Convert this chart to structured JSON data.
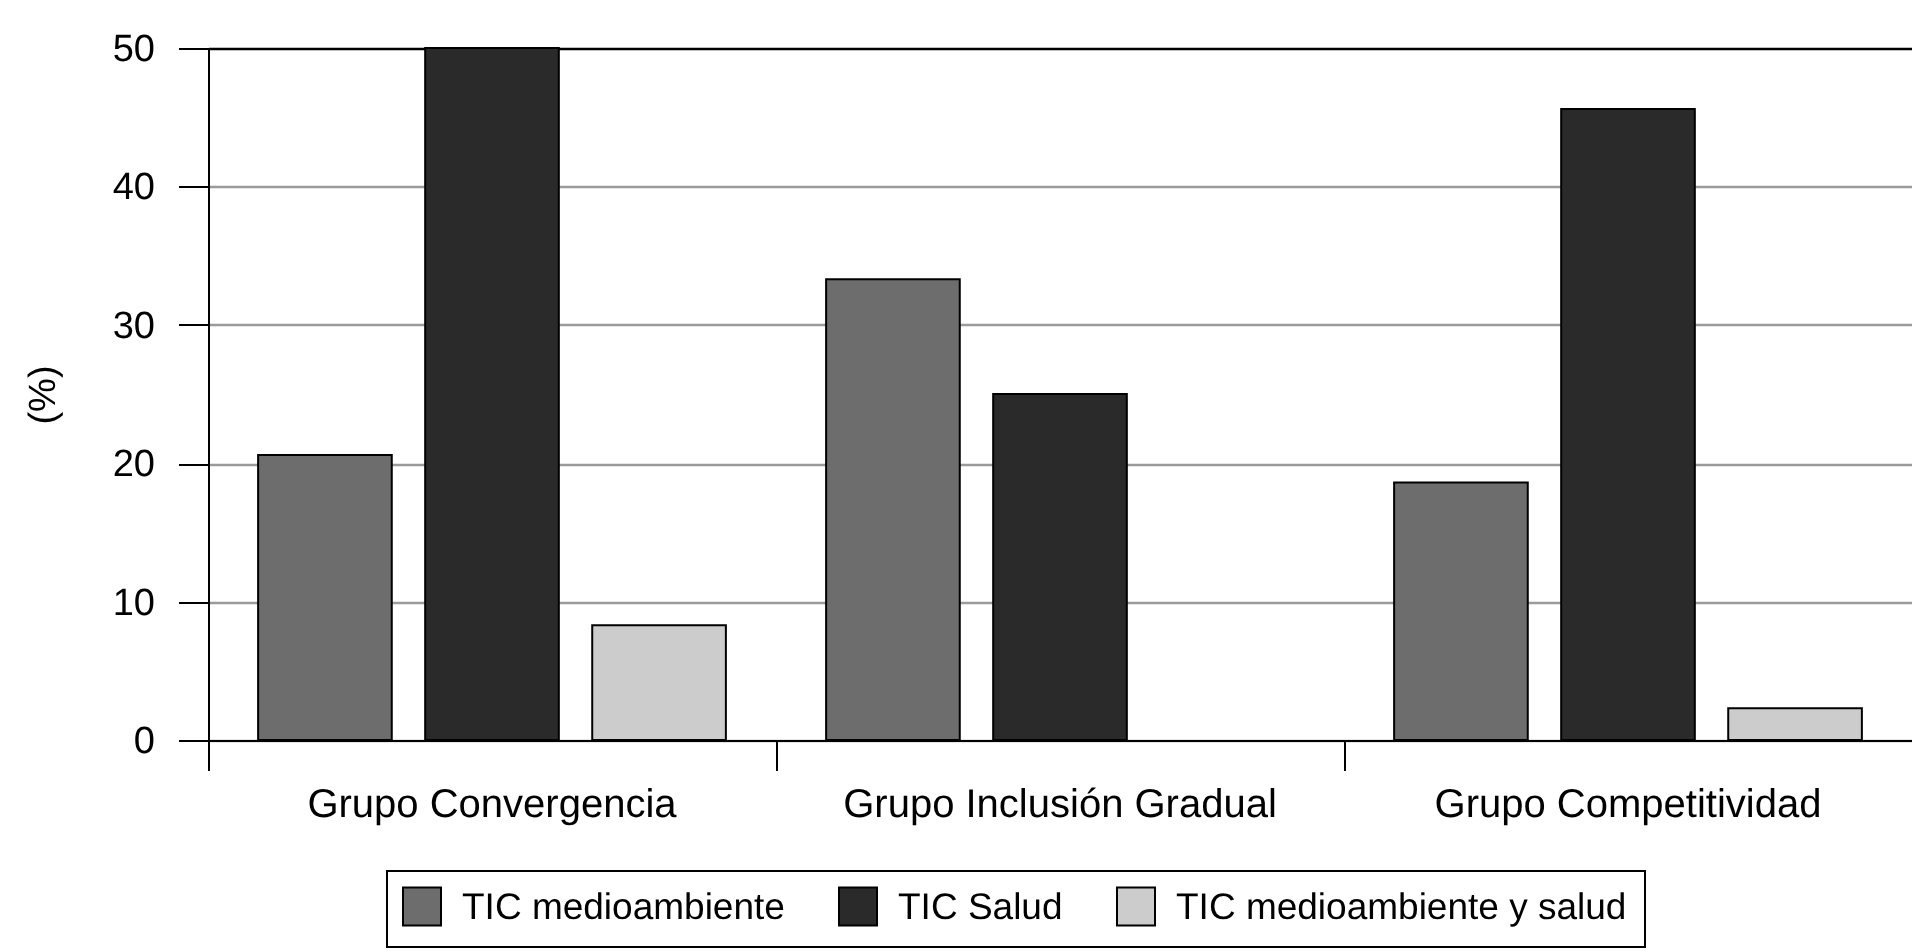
{
  "chart_data": {
    "type": "bar",
    "ylabel": "(%)",
    "categories": [
      "Grupo Convergencia",
      "Grupo Inclusión Gradual",
      "Grupo Competitividad"
    ],
    "series": [
      {
        "name": "TIC medioambiente",
        "color": "#6d6d6d",
        "values": [
          20.6,
          33.3,
          18.6
        ]
      },
      {
        "name": "TIC Salud",
        "color": "#2a2a2a",
        "values": [
          50,
          25.0,
          45.6
        ]
      },
      {
        "name": "TIC medioambiente y salud",
        "color": "#cccccc",
        "values": [
          8.3,
          null,
          2.3
        ]
      }
    ],
    "ylim": [
      0,
      50
    ],
    "yticks": [
      0,
      10,
      20,
      30,
      40,
      50
    ],
    "grid": "y",
    "legend": "bottom"
  }
}
